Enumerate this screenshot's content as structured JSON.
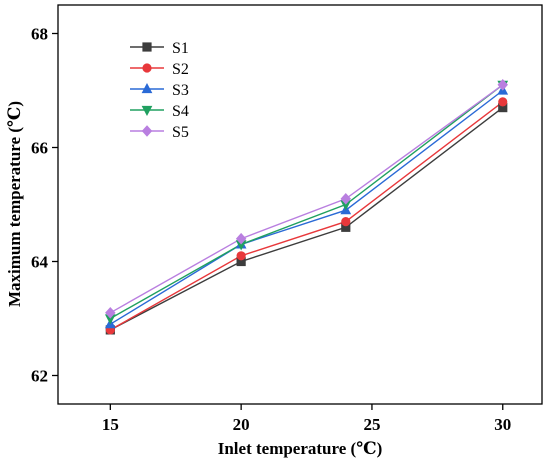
{
  "chart_data": {
    "type": "line",
    "xlabel": "Inlet temperature (℃)",
    "ylabel": "Maximum temperature (℃)",
    "x": [
      15,
      20,
      24,
      30
    ],
    "xticks": [
      15,
      20,
      25,
      30
    ],
    "yticks": [
      62,
      64,
      66,
      68
    ],
    "xlim": [
      13,
      31.5
    ],
    "ylim": [
      61.5,
      68.5
    ],
    "grid": false,
    "legend_position": "top-left",
    "series": [
      {
        "name": "S1",
        "color": "#3d3d3d",
        "marker": "square",
        "values": [
          62.8,
          64.0,
          64.6,
          66.7
        ]
      },
      {
        "name": "S2",
        "color": "#e8383b",
        "marker": "circle",
        "values": [
          62.8,
          64.1,
          64.7,
          66.8
        ]
      },
      {
        "name": "S3",
        "color": "#2a6ad6",
        "marker": "triangle-up",
        "values": [
          62.9,
          64.3,
          64.9,
          67.0
        ]
      },
      {
        "name": "S4",
        "color": "#20a060",
        "marker": "triangle-down",
        "values": [
          63.0,
          64.3,
          65.0,
          67.1
        ]
      },
      {
        "name": "S5",
        "color": "#b97fe0",
        "marker": "diamond",
        "values": [
          63.1,
          64.4,
          65.1,
          67.1
        ]
      }
    ]
  }
}
